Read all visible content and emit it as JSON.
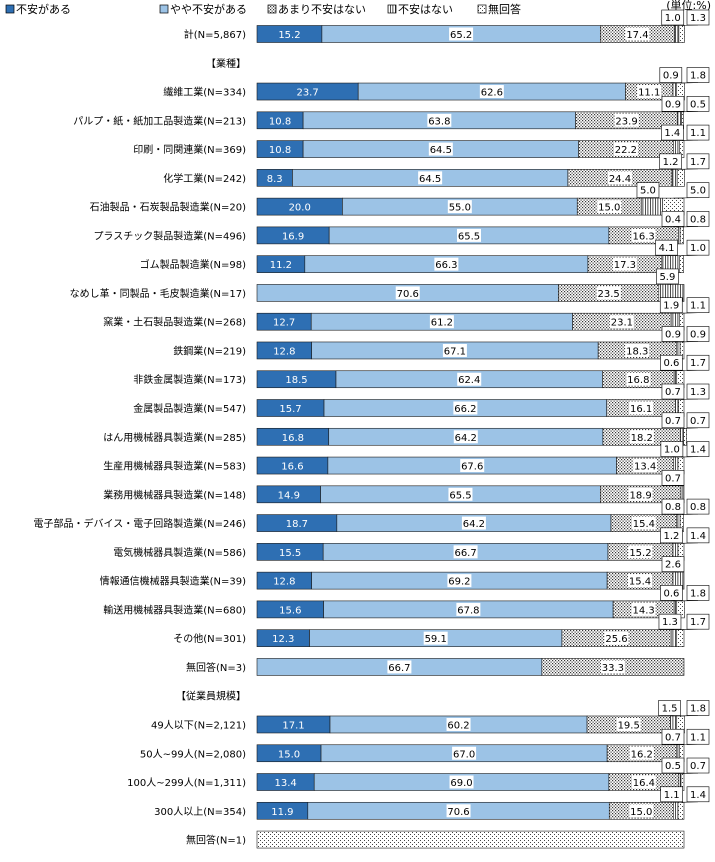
{
  "chart_data": {
    "type": "bar",
    "orientation": "horizontal",
    "stacked": true,
    "percent": true,
    "unit_label": "(単位:%)",
    "xlim": [
      0,
      100
    ],
    "grid": false,
    "legend_position": "top",
    "series": [
      {
        "name": "不安がある",
        "color": "#2e6fb3",
        "pattern": "solid",
        "values": [
          15.2,
          null,
          23.7,
          10.8,
          10.8,
          8.3,
          20.0,
          16.9,
          11.2,
          0,
          12.7,
          12.8,
          18.5,
          15.7,
          16.8,
          16.6,
          14.9,
          18.7,
          15.5,
          12.8,
          15.6,
          12.3,
          0,
          null,
          17.1,
          15.0,
          13.4,
          11.9,
          0
        ]
      },
      {
        "name": "やや不安がある",
        "color": "#9cc3e6",
        "pattern": "solid",
        "values": [
          65.2,
          null,
          62.6,
          63.8,
          64.5,
          64.5,
          55.0,
          65.5,
          66.3,
          70.6,
          61.2,
          67.1,
          62.4,
          66.2,
          64.2,
          67.6,
          65.5,
          64.2,
          66.7,
          69.2,
          67.8,
          59.1,
          66.7,
          null,
          60.2,
          67.0,
          69.0,
          70.6,
          0
        ]
      },
      {
        "name": "あまり不安はない",
        "color": "#ffffff",
        "pattern": "dense-dots",
        "values": [
          17.4,
          null,
          11.1,
          23.9,
          22.2,
          24.4,
          15.0,
          16.3,
          17.3,
          23.5,
          23.1,
          18.3,
          16.8,
          16.1,
          18.2,
          13.4,
          18.9,
          15.4,
          15.2,
          15.4,
          14.3,
          25.6,
          33.3,
          null,
          19.5,
          16.2,
          16.4,
          15.0,
          0
        ]
      },
      {
        "name": "不安はない",
        "color": "#ffffff",
        "pattern": "vertical-lines",
        "values": [
          1.0,
          null,
          0.9,
          0.9,
          1.4,
          1.2,
          5.0,
          0.4,
          4.1,
          5.9,
          1.9,
          0.9,
          0.6,
          0.7,
          0.7,
          1.0,
          0.7,
          0.8,
          1.2,
          2.6,
          0.6,
          1.3,
          0,
          null,
          1.5,
          0.7,
          0.5,
          1.1,
          0
        ]
      },
      {
        "name": "無回答",
        "color": "#ffffff",
        "pattern": "sparse-dots",
        "values": [
          1.3,
          null,
          1.8,
          0.5,
          1.1,
          1.7,
          5.0,
          0.8,
          1.0,
          0,
          1.1,
          0.9,
          1.7,
          1.3,
          0.7,
          1.4,
          0,
          0.8,
          1.4,
          0,
          1.8,
          1.7,
          0,
          null,
          1.8,
          1.1,
          0.7,
          1.4,
          100.0
        ]
      }
    ],
    "categories": [
      "計(N=5,867)",
      "【業種】",
      "繊維工業(N=334)",
      "パルプ・紙・紙加工品製造業(N=213)",
      "印刷・同関連業(N=369)",
      "化学工業(N=242)",
      "石油製品・石炭製品製造業(N=20)",
      "プラスチック製品製造業(N=496)",
      "ゴム製品製造業(N=98)",
      "なめし革・同製品・毛皮製造業(N=17)",
      "窯業・土石製品製造業(N=268)",
      "鉄鋼業(N=219)",
      "非鉄金属製造業(N=173)",
      "金属製品製造業(N=547)",
      "はん用機械器具製造業(N=285)",
      "生産用機械器具製造業(N=583)",
      "業務用機械器具製造業(N=148)",
      "電子部品・デバイス・電子回路製造業(N=246)",
      "電気機械器具製造業(N=586)",
      "情報通信機械器具製造業(N=39)",
      "輸送用機械器具製造業(N=680)",
      "その他(N=301)",
      "無回答(N=3)",
      "【従業員規模】",
      "49人以下(N=2,121)",
      "50人~99人(N=2,080)",
      "100人~299人(N=1,311)",
      "300人以上(N=354)",
      "無回答(N=1)"
    ]
  }
}
